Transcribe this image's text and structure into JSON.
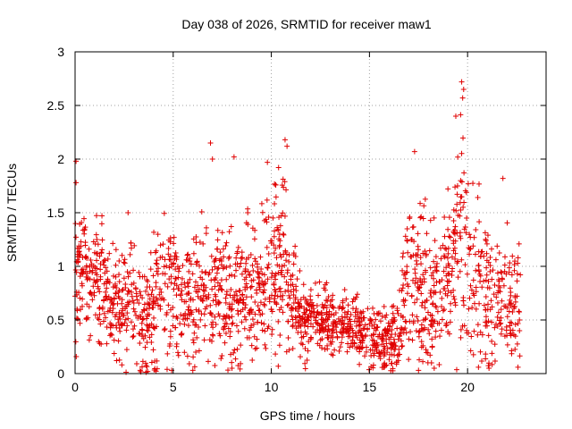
{
  "chart_data": {
    "type": "scatter",
    "title": "Day 038 of 2026, SRMTID for receiver maw1",
    "xlabel": "GPS time / hours",
    "ylabel": "SRMTID / TECUs",
    "xlim": [
      0,
      24
    ],
    "ylim": [
      0,
      3
    ],
    "xticks": [
      0,
      5,
      10,
      15,
      20
    ],
    "yticks": [
      0,
      0.5,
      1,
      1.5,
      2,
      2.5,
      3
    ],
    "ytick_labels": [
      "0",
      "0.5",
      "1",
      "1.5",
      "2",
      "2.5",
      "3"
    ],
    "marker": "+",
    "color": "#e00000",
    "grid": true,
    "data_range_hours": [
      0,
      22.7
    ],
    "profile": [
      {
        "t": 0.0,
        "mean": 0.95,
        "spread": 0.45
      },
      {
        "t": 1.0,
        "mean": 0.95,
        "spread": 0.4
      },
      {
        "t": 2.0,
        "mean": 0.6,
        "spread": 0.35
      },
      {
        "t": 3.0,
        "mean": 0.65,
        "spread": 0.4
      },
      {
        "t": 3.5,
        "mean": 0.45,
        "spread": 0.4
      },
      {
        "t": 4.5,
        "mean": 0.8,
        "spread": 0.45
      },
      {
        "t": 5.5,
        "mean": 0.65,
        "spread": 0.35
      },
      {
        "t": 6.5,
        "mean": 0.75,
        "spread": 0.45
      },
      {
        "t": 7.5,
        "mean": 0.7,
        "spread": 0.45
      },
      {
        "t": 8.5,
        "mean": 0.75,
        "spread": 0.5
      },
      {
        "t": 9.5,
        "mean": 0.75,
        "spread": 0.5
      },
      {
        "t": 10.6,
        "mean": 1.1,
        "spread": 0.6
      },
      {
        "t": 11.5,
        "mean": 0.5,
        "spread": 0.25
      },
      {
        "t": 12.5,
        "mean": 0.5,
        "spread": 0.2
      },
      {
        "t": 13.5,
        "mean": 0.45,
        "spread": 0.2
      },
      {
        "t": 14.5,
        "mean": 0.4,
        "spread": 0.2
      },
      {
        "t": 15.5,
        "mean": 0.28,
        "spread": 0.2
      },
      {
        "t": 16.5,
        "mean": 0.35,
        "spread": 0.25
      },
      {
        "t": 17.0,
        "mean": 0.85,
        "spread": 0.55
      },
      {
        "t": 18.0,
        "mean": 0.7,
        "spread": 0.5
      },
      {
        "t": 19.0,
        "mean": 0.85,
        "spread": 0.55
      },
      {
        "t": 19.7,
        "mean": 1.3,
        "spread": 0.7
      },
      {
        "t": 20.5,
        "mean": 0.8,
        "spread": 0.5
      },
      {
        "t": 21.5,
        "mean": 0.7,
        "spread": 0.45
      },
      {
        "t": 22.7,
        "mean": 0.6,
        "spread": 0.35
      }
    ],
    "notable_points": [
      {
        "x": 0.05,
        "y": 1.98
      },
      {
        "x": 0.05,
        "y": 1.78
      },
      {
        "x": 2.7,
        "y": 1.5
      },
      {
        "x": 3.7,
        "y": 0.02
      },
      {
        "x": 6.0,
        "y": 0.03
      },
      {
        "x": 6.9,
        "y": 2.15
      },
      {
        "x": 7.0,
        "y": 2.0
      },
      {
        "x": 8.1,
        "y": 2.02
      },
      {
        "x": 9.8,
        "y": 1.97
      },
      {
        "x": 10.7,
        "y": 2.18
      },
      {
        "x": 10.8,
        "y": 2.12
      },
      {
        "x": 17.3,
        "y": 2.07
      },
      {
        "x": 17.5,
        "y": 0.03
      },
      {
        "x": 18.3,
        "y": 0.05
      },
      {
        "x": 19.4,
        "y": 2.4
      },
      {
        "x": 19.7,
        "y": 2.72
      },
      {
        "x": 19.75,
        "y": 2.57
      },
      {
        "x": 19.8,
        "y": 2.65
      },
      {
        "x": 21.8,
        "y": 1.82
      }
    ],
    "n_points": 2000,
    "seed": 38
  }
}
